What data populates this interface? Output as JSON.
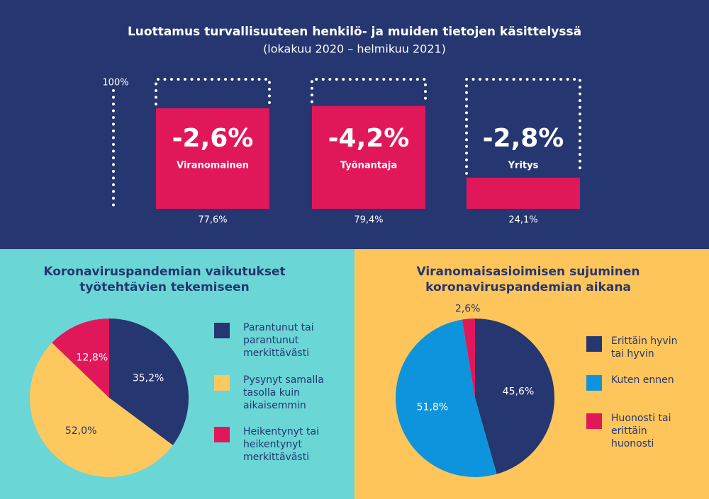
{
  "chart_data": [
    {
      "type": "bar",
      "title": "Luottamus turvallisuuteen henkilö- ja muiden tietojen käsittelyssä",
      "subtitle": "(lokakuu 2020 – helmikuu 2021)",
      "categories": [
        "Viranomainen",
        "Työnantaja",
        "Yritys"
      ],
      "values": [
        77.6,
        79.4,
        24.1
      ],
      "value_labels": [
        "77,6%",
        "79,4%",
        "24,1%"
      ],
      "annotations": [
        "-2,6%",
        "-4,2%",
        "-2,8%"
      ],
      "color": "#e0185a",
      "ylim": [
        0,
        100
      ],
      "yticks": [
        {
          "value": 100,
          "label": "100%"
        }
      ]
    },
    {
      "type": "pie",
      "title": "Koronaviruspandemian vaikutukset työtehtävien tekemiseen",
      "categories": [
        "Parantunut tai parantunut merkittävästi",
        "Pysynyt samalla tasolla kuin aikaisemmin",
        "Heikentynyt tai heikentynyt merkittävästi"
      ],
      "values": [
        35.2,
        52.0,
        12.8
      ],
      "value_labels": [
        "35,2%",
        "52,0%",
        "12,8%"
      ],
      "colors": [
        "#253670",
        "#fdc85e",
        "#e0185a"
      ]
    },
    {
      "type": "pie",
      "title": "Viranomaisasioimisen sujuminen koronaviruspandemian aikana",
      "categories": [
        "Erittäin hyvin tai hyvin",
        "Kuten ennen",
        "Huonosti tai erittäin huonosti"
      ],
      "values": [
        45.6,
        51.8,
        2.6
      ],
      "value_labels": [
        "45,6%",
        "51,8%",
        "2,6%"
      ],
      "colors": [
        "#253670",
        "#0e94dc",
        "#e0185a"
      ]
    }
  ]
}
